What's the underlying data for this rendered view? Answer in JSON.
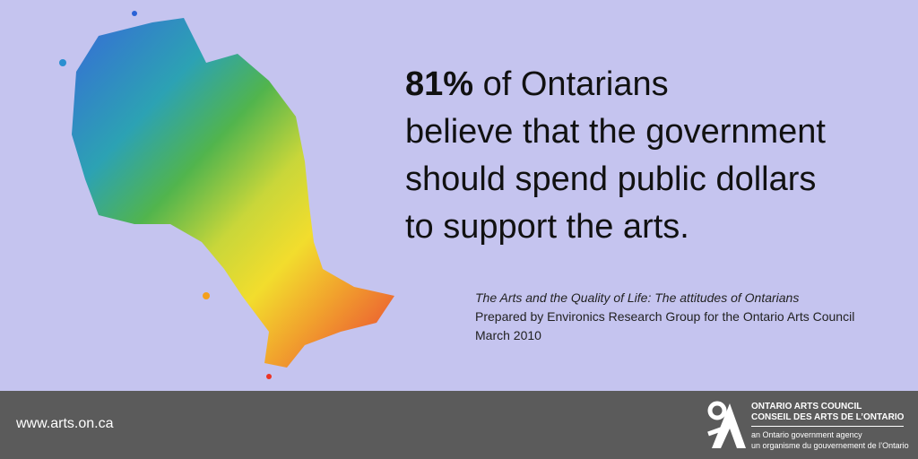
{
  "headline": {
    "stat": "81%",
    "lines": [
      "of Ontarians",
      "believe that the government",
      "should spend public dollars",
      "to support the arts."
    ]
  },
  "source": {
    "title": "The Arts and the Quality of Life: The attitudes of Ontarians",
    "prepared_by": "Prepared by Environics Research Group for the Ontario Arts Council",
    "date": "March 2010"
  },
  "footer": {
    "url": "www.arts.on.ca",
    "logo": {
      "name_en": "ONTARIO ARTS COUNCIL",
      "name_fr": "CONSEIL DES ARTS DE L’ONTARIO",
      "tagline_en": "an Ontario government agency",
      "tagline_fr": "un organisme du gouvernement de l’Ontario"
    }
  }
}
